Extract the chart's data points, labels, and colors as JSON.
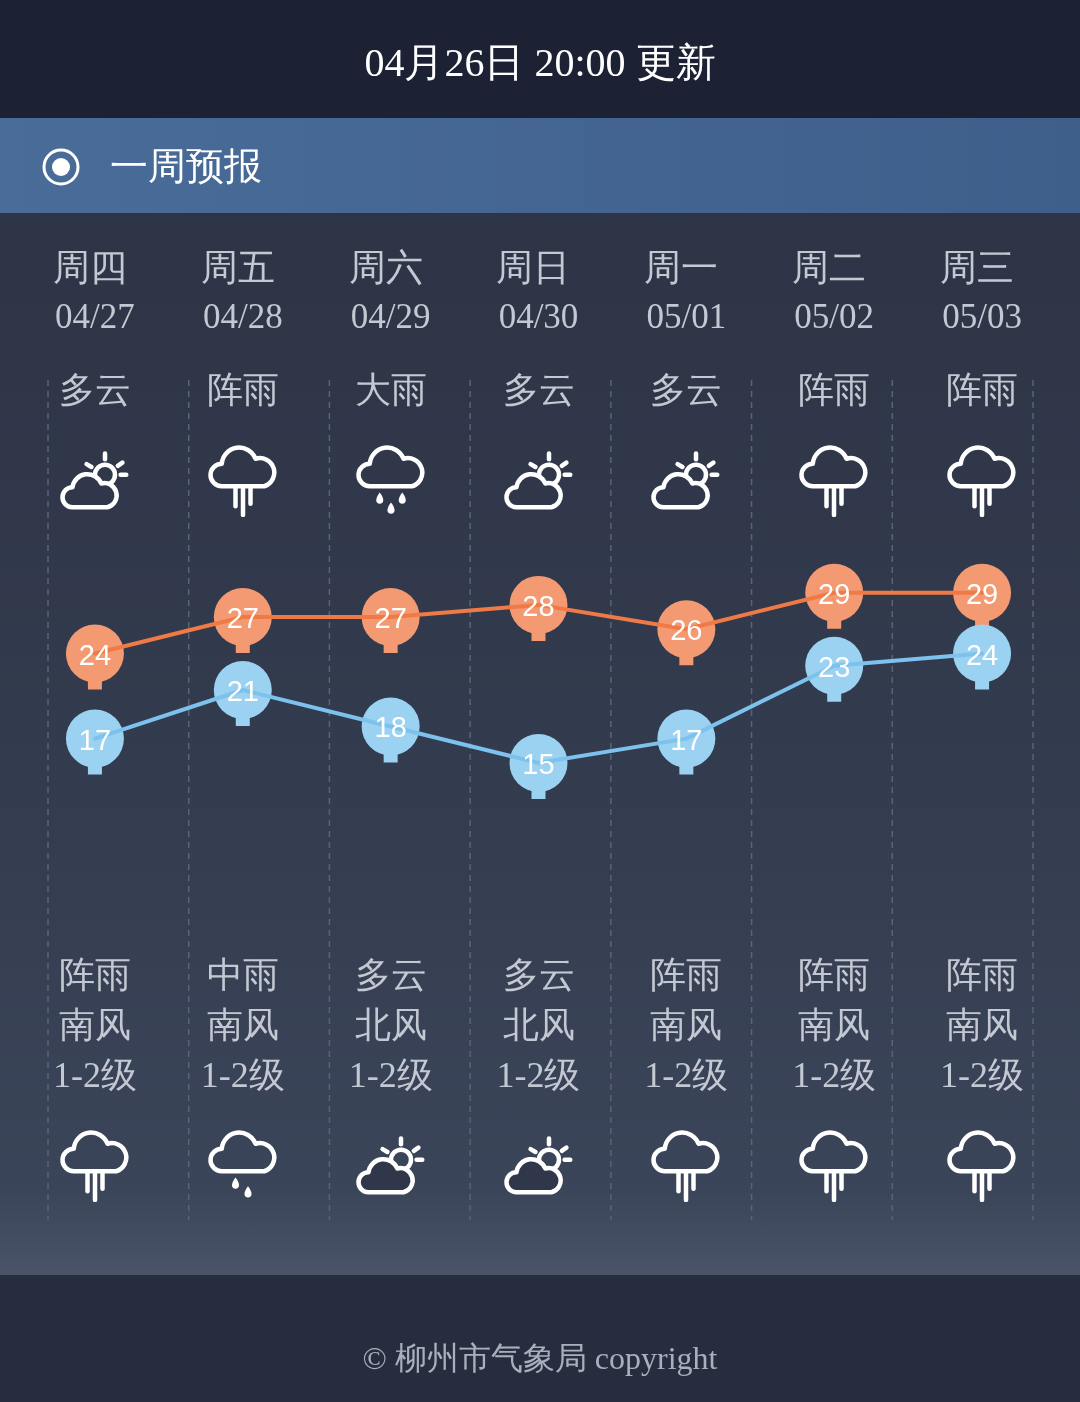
{
  "chart_data": {
    "type": "line",
    "title": "04月26日 20:00 更新",
    "subtitle": "一周预报",
    "categories": [
      "周四 04/27",
      "周五 04/28",
      "周六 04/29",
      "周日 04/30",
      "周一 05/01",
      "周二 05/02",
      "周三 05/03"
    ],
    "series": [
      {
        "color": "#f07a45",
        "values": [
          24,
          27,
          27,
          28,
          26,
          29,
          29
        ]
      },
      {
        "color": "#7cc2ec",
        "values": [
          17,
          21,
          18,
          15,
          17,
          23,
          24
        ]
      }
    ],
    "data_labels": true,
    "grid": "x",
    "annotations": [
      "多云",
      "阵雨",
      "大雨",
      "多云",
      "多云",
      "阵雨",
      "阵雨",
      "阵雨",
      "中雨",
      "多云",
      "多云",
      "阵雨",
      "阵雨",
      "阵雨",
      "南风",
      "南风",
      "北风",
      "北风",
      "南风",
      "南风",
      "南风",
      "1-2级",
      "1-2级",
      "1-2级",
      "1-2级",
      "1-2级",
      "1-2级",
      "1-2级",
      "© 柳州市气象局 copyright"
    ]
  }
}
